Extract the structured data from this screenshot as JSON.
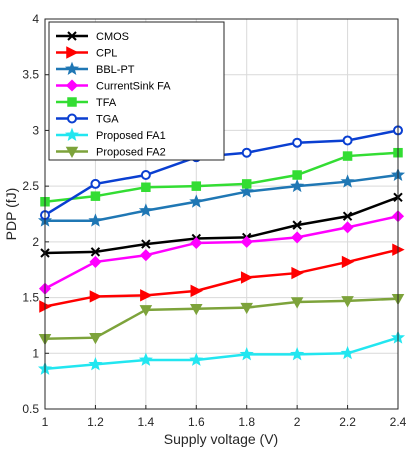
{
  "chart_data": {
    "type": "line",
    "title": "",
    "xlabel": "Supply voltage (V)",
    "ylabel": "PDP (fJ)",
    "xlim": [
      1,
      2.4
    ],
    "ylim": [
      0.5,
      4
    ],
    "xticks": [
      1,
      1.2,
      1.4,
      1.6,
      1.8,
      2,
      2.2,
      2.4
    ],
    "yticks": [
      0.5,
      1,
      1.5,
      2,
      2.5,
      3,
      3.5,
      4
    ],
    "xtick_labels": [
      "1",
      "1.2",
      "1.4",
      "1.6",
      "1.8",
      "2",
      "2.2",
      "2.4"
    ],
    "ytick_labels": [
      "0.5",
      "1",
      "1.5",
      "2",
      "2.5",
      "3",
      "3.5",
      "4"
    ],
    "grid": true,
    "legend_position": "top-left",
    "x": [
      1,
      1.2,
      1.4,
      1.6,
      1.8,
      2,
      2.2,
      2.4
    ],
    "series": [
      {
        "name": "CMOS",
        "color": "#000000",
        "marker": "x",
        "values": [
          1.9,
          1.91,
          1.98,
          2.03,
          2.04,
          2.15,
          2.23,
          2.4
        ]
      },
      {
        "name": "CPL",
        "color": "#ff0000",
        "marker": "triangle-right",
        "values": [
          1.42,
          1.51,
          1.52,
          1.56,
          1.68,
          1.72,
          1.82,
          1.93
        ]
      },
      {
        "name": "BBL-PT",
        "color": "#1f77b4",
        "marker": "star",
        "values": [
          2.19,
          2.19,
          2.28,
          2.36,
          2.45,
          2.5,
          2.54,
          2.6
        ]
      },
      {
        "name": "CurrentSink FA",
        "color": "#ff00ff",
        "marker": "diamond",
        "values": [
          1.58,
          1.82,
          1.88,
          1.99,
          2.0,
          2.04,
          2.13,
          2.23
        ]
      },
      {
        "name": "TFA",
        "color": "#33dd33",
        "marker": "square",
        "values": [
          2.36,
          2.41,
          2.49,
          2.5,
          2.52,
          2.6,
          2.77,
          2.8
        ]
      },
      {
        "name": "TGA",
        "color": "#0a3fd1",
        "marker": "circle",
        "values": [
          2.24,
          2.52,
          2.6,
          2.76,
          2.8,
          2.89,
          2.91,
          3.0
        ]
      },
      {
        "name": "Proposed FA1",
        "color": "#22e6f0",
        "marker": "pentagram",
        "values": [
          0.86,
          0.9,
          0.94,
          0.94,
          0.99,
          0.99,
          1.0,
          1.14
        ]
      },
      {
        "name": "Proposed FA2",
        "color": "#7da33b",
        "marker": "triangle-down",
        "values": [
          1.13,
          1.14,
          1.39,
          1.4,
          1.41,
          1.46,
          1.47,
          1.49
        ]
      }
    ]
  }
}
